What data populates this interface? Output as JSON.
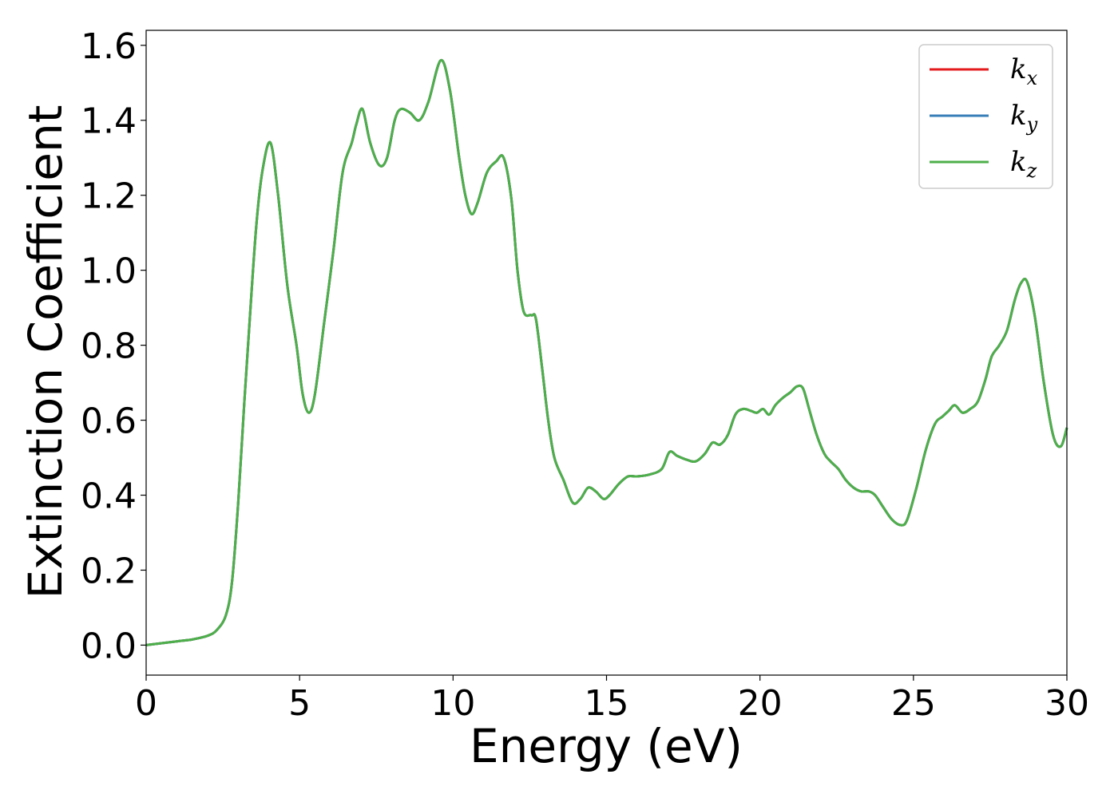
{
  "chart_data": {
    "type": "line",
    "xlabel": "Energy (eV)",
    "ylabel": "Extinction Coefficient",
    "xlim": [
      0,
      30
    ],
    "ylim": [
      -0.08,
      1.64
    ],
    "xticks": [
      0,
      5,
      10,
      15,
      20,
      25,
      30
    ],
    "xtick_labels": [
      "0",
      "5",
      "10",
      "15",
      "20",
      "25",
      "30"
    ],
    "yticks": [
      0.0,
      0.2,
      0.4,
      0.6,
      0.8,
      1.0,
      1.2,
      1.4,
      1.6
    ],
    "ytick_labels": [
      "0.0",
      "0.2",
      "0.4",
      "0.6",
      "0.8",
      "1.0",
      "1.2",
      "1.4",
      "1.6"
    ],
    "grid": false,
    "legend_position": "top-right",
    "series": [
      {
        "name": "k",
        "subscript": "x",
        "color": "#e41a1c"
      },
      {
        "name": "k",
        "subscript": "y",
        "color": "#377eb8"
      },
      {
        "name": "k",
        "subscript": "z",
        "color": "#4daf4a"
      }
    ],
    "shared_curve": {
      "x": [
        0,
        1,
        1.5,
        2,
        2.3,
        2.6,
        2.8,
        3,
        3.2,
        3.4,
        3.6,
        3.8,
        4.05,
        4.3,
        4.6,
        4.9,
        5.1,
        5.3,
        5.5,
        5.8,
        6.1,
        6.4,
        6.7,
        6.85,
        7.05,
        7.3,
        7.6,
        7.85,
        8.1,
        8.3,
        8.6,
        8.9,
        9.2,
        9.6,
        9.9,
        10.2,
        10.4,
        10.6,
        10.8,
        11.1,
        11.4,
        11.65,
        11.9,
        12.1,
        12.3,
        12.55,
        12.7,
        12.9,
        13.1,
        13.3,
        13.6,
        13.9,
        14.15,
        14.4,
        14.65,
        14.9,
        15.1,
        15.4,
        15.7,
        16,
        16.4,
        16.8,
        17.05,
        17.3,
        17.6,
        17.9,
        18.2,
        18.45,
        18.7,
        18.95,
        19.2,
        19.45,
        19.7,
        19.9,
        20.1,
        20.3,
        20.5,
        20.75,
        21,
        21.2,
        21.4,
        21.6,
        21.85,
        22.1,
        22.3,
        22.55,
        22.8,
        23.05,
        23.3,
        23.55,
        23.75,
        24,
        24.3,
        24.6,
        24.8,
        25.1,
        25.4,
        25.7,
        25.95,
        26.15,
        26.35,
        26.6,
        26.85,
        27.1,
        27.35,
        27.55,
        27.8,
        28.05,
        28.3,
        28.5,
        28.7,
        28.95,
        29.25,
        29.55,
        29.8,
        30
      ],
      "y": [
        0,
        0.01,
        0.015,
        0.025,
        0.04,
        0.08,
        0.17,
        0.38,
        0.65,
        0.9,
        1.13,
        1.27,
        1.34,
        1.2,
        0.96,
        0.8,
        0.67,
        0.62,
        0.67,
        0.86,
        1.05,
        1.26,
        1.34,
        1.39,
        1.43,
        1.34,
        1.28,
        1.3,
        1.4,
        1.43,
        1.42,
        1.4,
        1.45,
        1.56,
        1.48,
        1.3,
        1.2,
        1.15,
        1.18,
        1.26,
        1.29,
        1.3,
        1.19,
        1.0,
        0.89,
        0.88,
        0.87,
        0.74,
        0.6,
        0.5,
        0.44,
        0.38,
        0.39,
        0.42,
        0.41,
        0.39,
        0.4,
        0.43,
        0.45,
        0.45,
        0.455,
        0.47,
        0.515,
        0.505,
        0.495,
        0.49,
        0.51,
        0.54,
        0.535,
        0.56,
        0.615,
        0.63,
        0.625,
        0.62,
        0.63,
        0.615,
        0.64,
        0.66,
        0.675,
        0.69,
        0.685,
        0.63,
        0.56,
        0.51,
        0.49,
        0.47,
        0.44,
        0.42,
        0.41,
        0.41,
        0.4,
        0.37,
        0.335,
        0.32,
        0.335,
        0.42,
        0.52,
        0.59,
        0.61,
        0.625,
        0.64,
        0.62,
        0.63,
        0.65,
        0.71,
        0.77,
        0.8,
        0.84,
        0.92,
        0.965,
        0.97,
        0.88,
        0.7,
        0.56,
        0.53,
        0.58
      ]
    }
  }
}
